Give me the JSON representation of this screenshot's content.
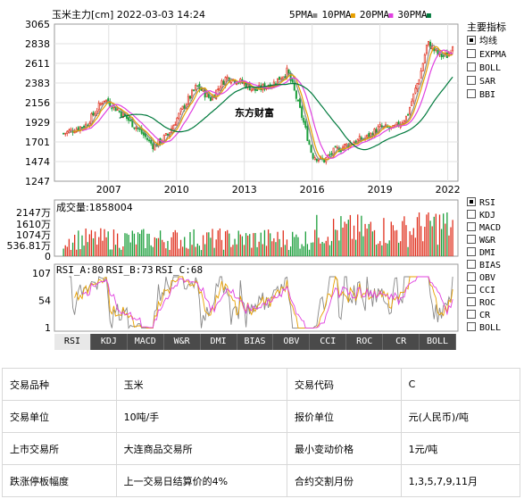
{
  "header": {
    "title": "玉米主力[cm] 2022-03-03 14:24",
    "ma_legend": [
      {
        "label": "5PMA",
        "color": "#888888"
      },
      {
        "label": "10PMA",
        "color": "#e8a000"
      },
      {
        "label": "20PMA",
        "color": "#e040e0"
      },
      {
        "label": "30PMA",
        "color": "#007a3d"
      }
    ]
  },
  "watermark": "东方财富",
  "main_indicators": {
    "title": "主要指标",
    "items": [
      "均线",
      "EXPMA",
      "BOLL",
      "SAR",
      "BBI"
    ],
    "selected": 0
  },
  "sub_indicators": {
    "items": [
      "RSI",
      "KDJ",
      "MACD",
      "W&R",
      "DMI",
      "BIAS",
      "OBV",
      "CCI",
      "ROC",
      "CR",
      "BOLL"
    ],
    "selected": 0
  },
  "tabs": {
    "items": [
      "RSI",
      "KDJ",
      "MACD",
      "W&R",
      "DMI",
      "BIAS",
      "OBV",
      "CCI",
      "ROC",
      "CR",
      "BOLL"
    ],
    "active": 0
  },
  "chart_data": [
    {
      "type": "candlestick",
      "x_tick_labels": [
        "2007",
        "2010",
        "2013",
        "2016",
        "2019",
        "2022"
      ],
      "y_tick_labels": [
        "3065",
        "2838",
        "2611",
        "2383",
        "2156",
        "1929",
        "1701",
        "1474",
        "1247"
      ],
      "ylim": [
        1247,
        3065
      ],
      "grid": true,
      "close_keypoints": [
        [
          2005.0,
          1800
        ],
        [
          2006.0,
          1900
        ],
        [
          2006.8,
          2200
        ],
        [
          2007.5,
          2050
        ],
        [
          2008.3,
          1850
        ],
        [
          2009.0,
          1650
        ],
        [
          2009.6,
          1780
        ],
        [
          2010.3,
          2100
        ],
        [
          2010.9,
          2350
        ],
        [
          2011.5,
          2200
        ],
        [
          2012.2,
          2450
        ],
        [
          2012.8,
          2400
        ],
        [
          2013.5,
          2300
        ],
        [
          2014.3,
          2380
        ],
        [
          2014.9,
          2520
        ],
        [
          2015.2,
          2300
        ],
        [
          2015.6,
          1950
        ],
        [
          2016.0,
          1550
        ],
        [
          2016.5,
          1480
        ],
        [
          2017.0,
          1600
        ],
        [
          2017.8,
          1700
        ],
        [
          2018.4,
          1750
        ],
        [
          2019.0,
          1870
        ],
        [
          2019.6,
          1850
        ],
        [
          2020.2,
          2000
        ],
        [
          2020.8,
          2500
        ],
        [
          2021.1,
          2850
        ],
        [
          2021.6,
          2700
        ],
        [
          2022.0,
          2700
        ],
        [
          2022.3,
          2880
        ]
      ]
    },
    {
      "type": "bar",
      "title": "成交量:1858004",
      "y_tick_labels": [
        "2147万",
        "1610万",
        "1074万",
        "536.81万",
        "0"
      ],
      "ylim": [
        0,
        21470000
      ]
    },
    {
      "type": "line",
      "series": [
        {
          "name": "RSI_A:80",
          "color": "#888888"
        },
        {
          "name": "RSI_B:73",
          "color": "#e8a000"
        },
        {
          "name": "RSI_C:68",
          "color": "#e040e0"
        }
      ],
      "y_tick_labels": [
        "107",
        "54",
        "1"
      ],
      "ylim": [
        1,
        107
      ]
    }
  ],
  "info_table": {
    "rows": [
      [
        {
          "k": "交易品种"
        },
        {
          "v": "玉米"
        },
        {
          "k": "交易代码"
        },
        {
          "v": "C"
        }
      ],
      [
        {
          "k": "交易单位"
        },
        {
          "v": "10吨/手"
        },
        {
          "k": "报价单位"
        },
        {
          "v": "元(人民币)/吨"
        }
      ],
      [
        {
          "k": "上市交易所"
        },
        {
          "v": "大连商品交易所"
        },
        {
          "k": "最小变动价格"
        },
        {
          "v": "1元/吨"
        }
      ],
      [
        {
          "k": "跌涨停板幅度"
        },
        {
          "v": "上一交易日结算价的4%"
        },
        {
          "k": "合约交割月份"
        },
        {
          "v": "1,3,5,7,9,11月"
        }
      ]
    ]
  }
}
